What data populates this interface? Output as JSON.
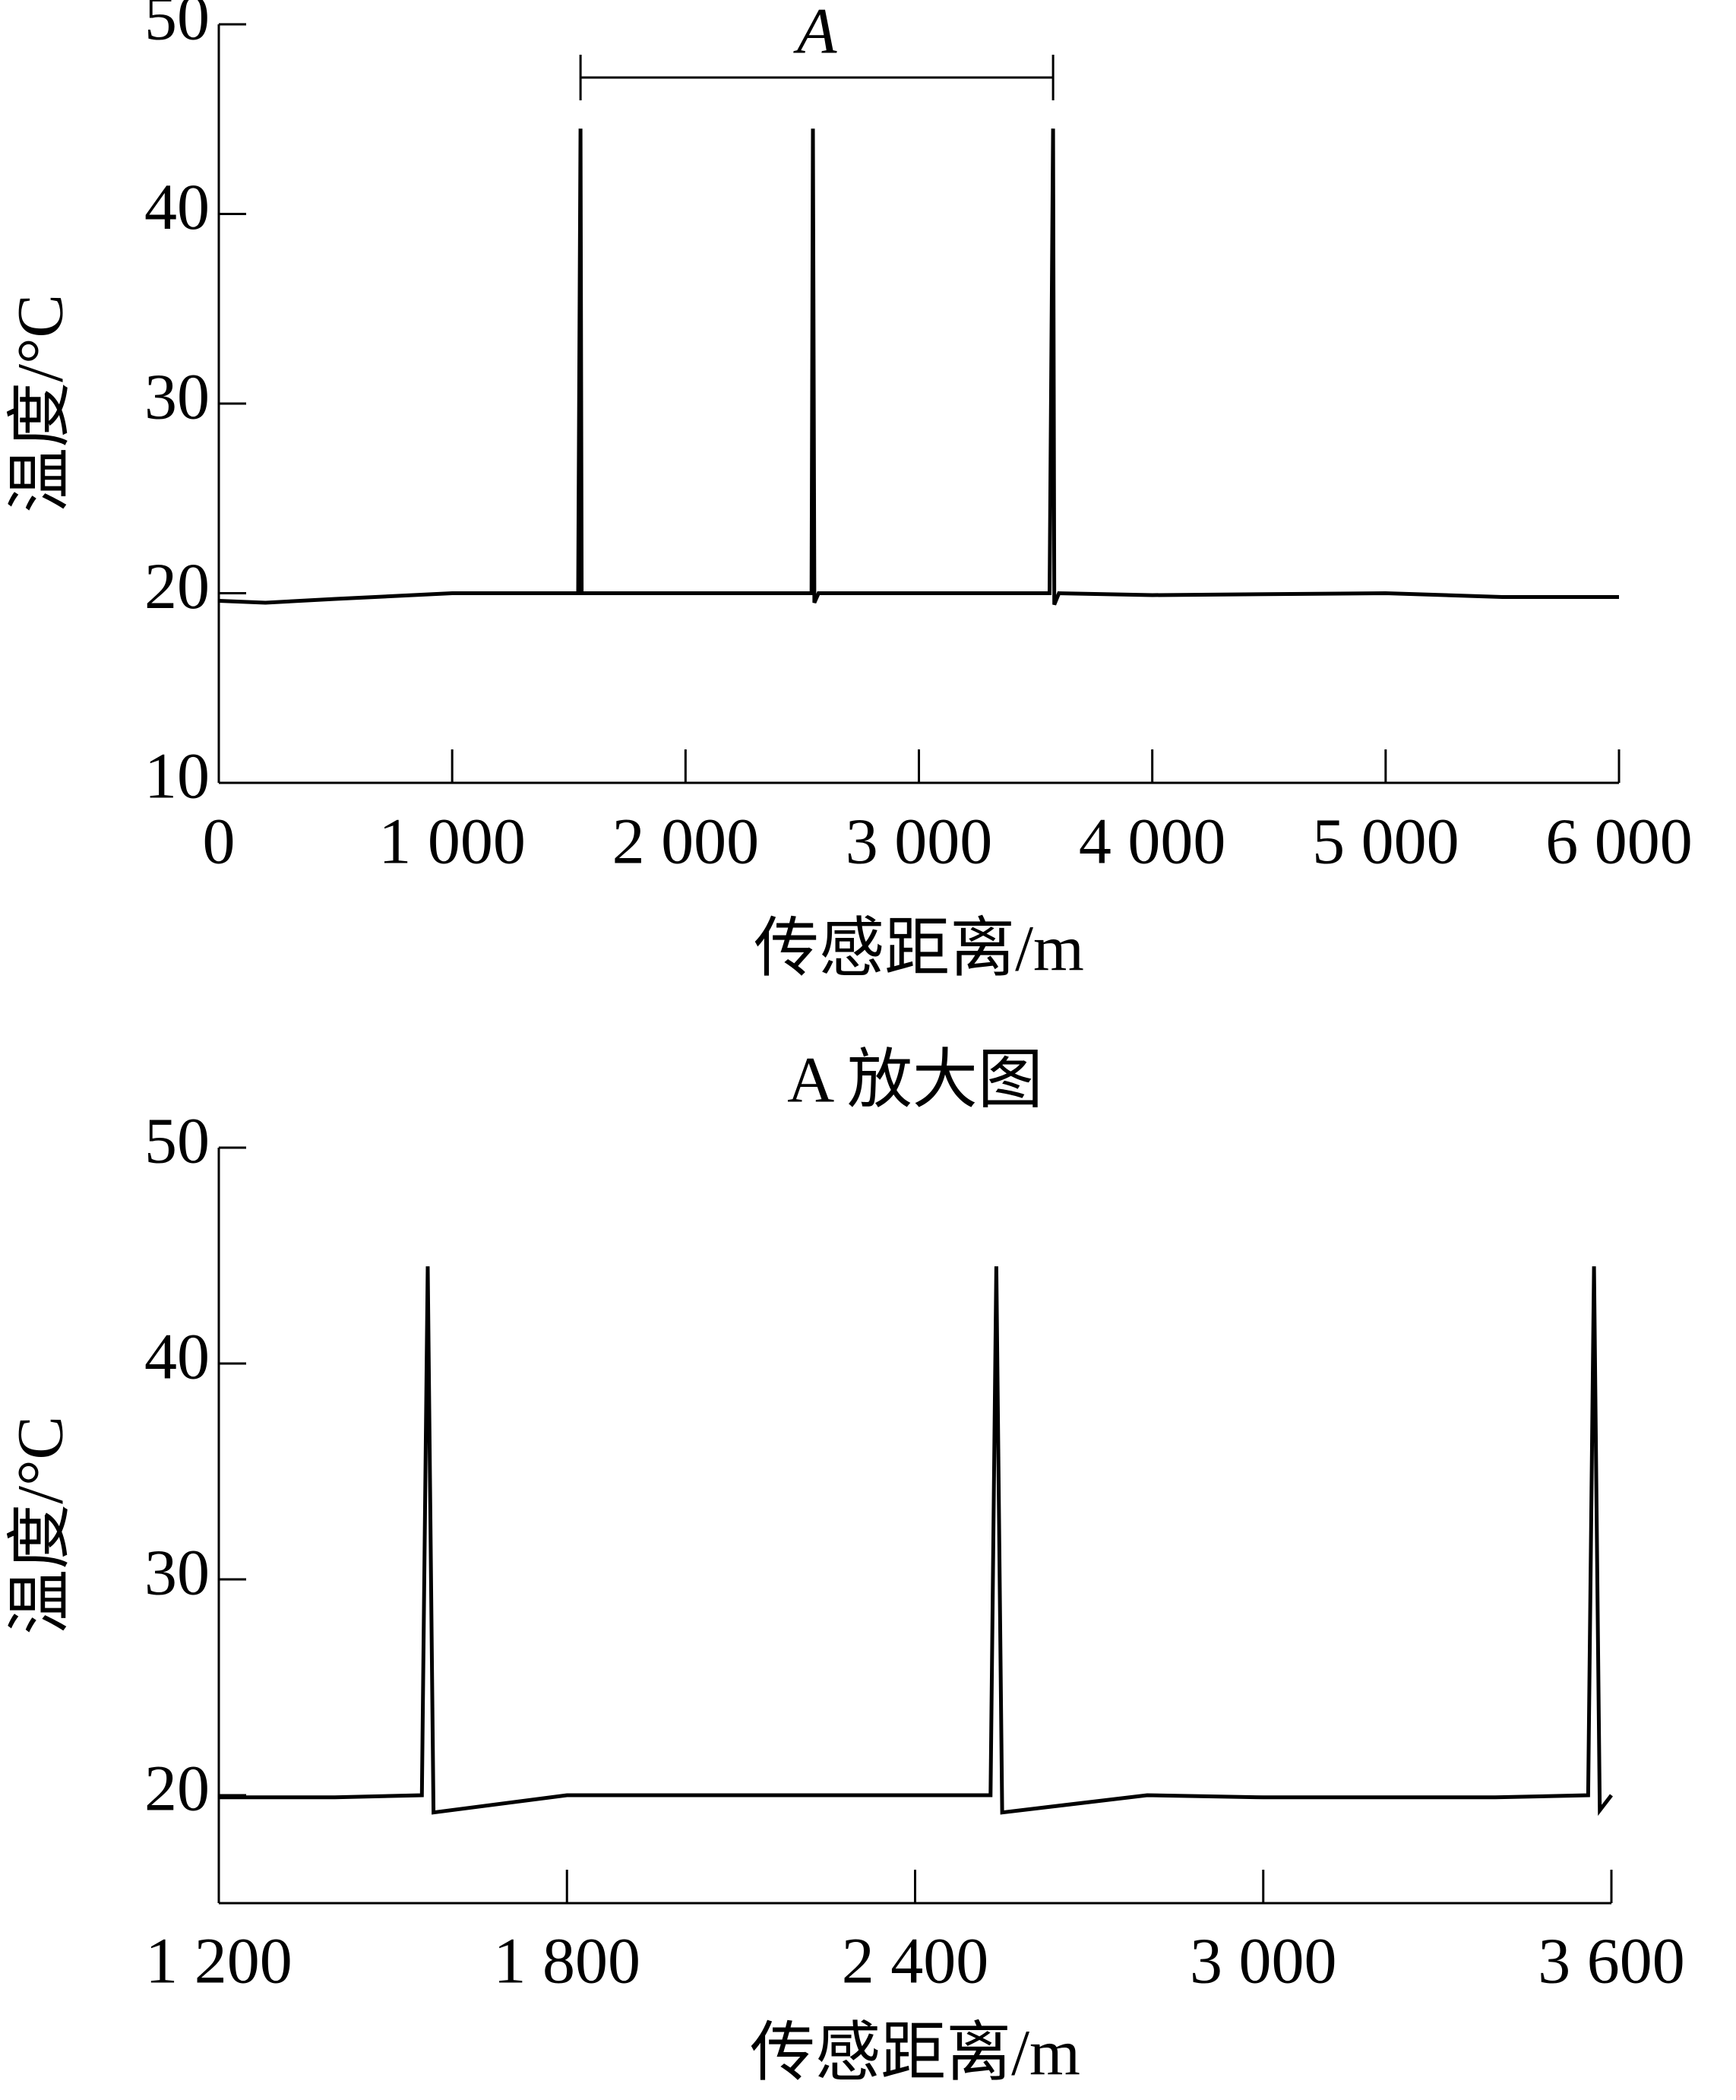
{
  "chart_data": [
    {
      "type": "line",
      "ylabel": "温度/°C",
      "xlabel": "传感距离/m",
      "xlim": [
        0,
        6000
      ],
      "ylim": [
        10,
        50
      ],
      "xticks": [
        0,
        {
          "value": 1000,
          "label": "1 000"
        },
        {
          "value": 2000,
          "label": "2 000"
        },
        {
          "value": 3000,
          "label": "3 000"
        },
        {
          "value": 4000,
          "label": "4 000"
        },
        {
          "value": 5000,
          "label": "5 000"
        },
        {
          "value": 6000,
          "label": "6 000"
        }
      ],
      "yticks": [
        10,
        20,
        30,
        40,
        50
      ],
      "annotation": {
        "text": "A",
        "x": [
          1550,
          3575
        ]
      },
      "series": [
        {
          "color": "#000000",
          "x": [
            0,
            200,
            500,
            1000,
            1540,
            1550,
            1555,
            1570,
            2000,
            2540,
            2546,
            2552,
            2570,
            3000,
            3560,
            3575,
            3580,
            3600,
            4000,
            5000,
            5500,
            6000
          ],
          "values": [
            19.6,
            19.5,
            19.7,
            20,
            20,
            44.5,
            20,
            20,
            20,
            20,
            44.5,
            19.5,
            20,
            20,
            20,
            44.5,
            19.4,
            20,
            19.9,
            20,
            19.8,
            19.8
          ]
        }
      ]
    },
    {
      "type": "line",
      "title": "A 放大图",
      "ylabel": "温度/°C",
      "xlabel": "传感距离/m",
      "xlim": [
        1200,
        3600
      ],
      "ylim": [
        15,
        50
      ],
      "xticks": [
        {
          "value": 1200,
          "label": "1 200"
        },
        {
          "value": 1800,
          "label": "1 800"
        },
        {
          "value": 2400,
          "label": "2 400"
        },
        {
          "value": 3000,
          "label": "3 000"
        },
        {
          "value": 3600,
          "label": "3 600"
        }
      ],
      "yticks": [
        20,
        30,
        40,
        50
      ],
      "series": [
        {
          "color": "#000000",
          "x": [
            1200,
            1400,
            1550,
            1560,
            1570,
            1800,
            2000,
            2400,
            2530,
            2540,
            2550,
            2800,
            3000,
            3400,
            3560,
            3570,
            3580,
            3600
          ],
          "values": [
            19.9,
            19.9,
            20,
            44.5,
            19.2,
            20,
            20,
            20,
            20,
            44.5,
            19.2,
            20,
            19.9,
            19.9,
            20,
            44.5,
            19.3,
            20
          ]
        }
      ]
    }
  ]
}
